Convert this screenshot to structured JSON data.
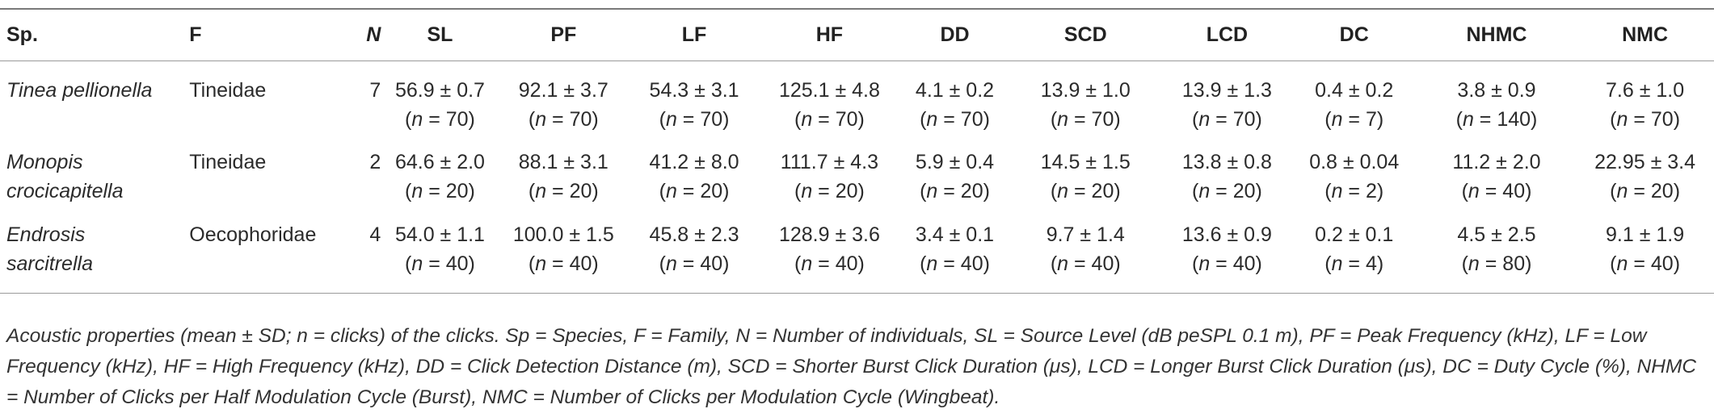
{
  "headers": [
    "Sp.",
    "F",
    "N",
    "SL",
    "PF",
    "LF",
    "HF",
    "DD",
    "SCD",
    "LCD",
    "DC",
    "NHMC",
    "NMC"
  ],
  "rows": [
    {
      "species_lines": [
        "Tinea pellionella"
      ],
      "family": "Tineidae",
      "n": "7",
      "values": [
        {
          "v": "56.9 ± 0.7",
          "n": "(n = 70)"
        },
        {
          "v": "92.1 ± 3.7",
          "n": "(n = 70)"
        },
        {
          "v": "54.3 ± 3.1",
          "n": "(n = 70)"
        },
        {
          "v": "125.1 ± 4.8",
          "n": "(n = 70)"
        },
        {
          "v": "4.1 ± 0.2",
          "n": "(n = 70)"
        },
        {
          "v": "13.9 ± 1.0",
          "n": "(n = 70)"
        },
        {
          "v": "13.9 ± 1.3",
          "n": "(n = 70)"
        },
        {
          "v": "0.4 ± 0.2",
          "n": "(n = 7)"
        },
        {
          "v": "3.8 ± 0.9",
          "n": "(n = 140)"
        },
        {
          "v": "7.6 ± 1.0",
          "n": "(n = 70)"
        }
      ]
    },
    {
      "species_lines": [
        "Monopis",
        "crocicapitella"
      ],
      "family": "Tineidae",
      "n": "2",
      "values": [
        {
          "v": "64.6 ± 2.0",
          "n": "(n = 20)"
        },
        {
          "v": "88.1 ± 3.1",
          "n": "(n = 20)"
        },
        {
          "v": "41.2 ± 8.0",
          "n": "(n = 20)"
        },
        {
          "v": "111.7 ± 4.3",
          "n": "(n = 20)"
        },
        {
          "v": "5.9 ± 0.4",
          "n": "(n = 20)"
        },
        {
          "v": "14.5 ± 1.5",
          "n": "(n = 20)"
        },
        {
          "v": "13.8 ± 0.8",
          "n": "(n = 20)"
        },
        {
          "v": "0.8 ± 0.04",
          "n": "(n = 2)"
        },
        {
          "v": "11.2 ± 2.0",
          "n": "(n = 40)"
        },
        {
          "v": "22.95 ± 3.4",
          "n": "(n = 20)"
        }
      ]
    },
    {
      "species_lines": [
        "Endrosis",
        "sarcitrella"
      ],
      "family": "Oecophoridae",
      "n": "4",
      "values": [
        {
          "v": "54.0 ± 1.1",
          "n": "(n = 40)"
        },
        {
          "v": "100.0 ± 1.5",
          "n": "(n = 40)"
        },
        {
          "v": "45.8 ± 2.3",
          "n": "(n = 40)"
        },
        {
          "v": "128.9 ± 3.6",
          "n": "(n = 40)"
        },
        {
          "v": "3.4 ± 0.1",
          "n": "(n = 40)"
        },
        {
          "v": "9.7 ± 1.4",
          "n": "(n = 40)"
        },
        {
          "v": "13.6 ± 0.9",
          "n": "(n = 40)"
        },
        {
          "v": "0.2 ± 0.1",
          "n": "(n = 4)"
        },
        {
          "v": "4.5 ± 2.5",
          "n": "(n = 80)"
        },
        {
          "v": "9.1 ± 1.9",
          "n": "(n = 40)"
        }
      ]
    }
  ],
  "caption": "Acoustic properties (mean ± SD; n = clicks) of the clicks. Sp = Species, F = Family, N = Number of individuals, SL = Source Level (dB peSPL 0.1 m), PF = Peak Frequency (kHz), LF = Low Frequency (kHz), HF = High Frequency (kHz), DD = Click Detection Distance (m), SCD = Shorter Burst Click Duration (μs), LCD = Longer Burst Click Duration (μs), DC = Duty Cycle (%), NHMC = Number of Clicks per Half Modulation Cycle (Burst), NMC = Number of Clicks per Modulation Cycle (Wingbeat)."
}
